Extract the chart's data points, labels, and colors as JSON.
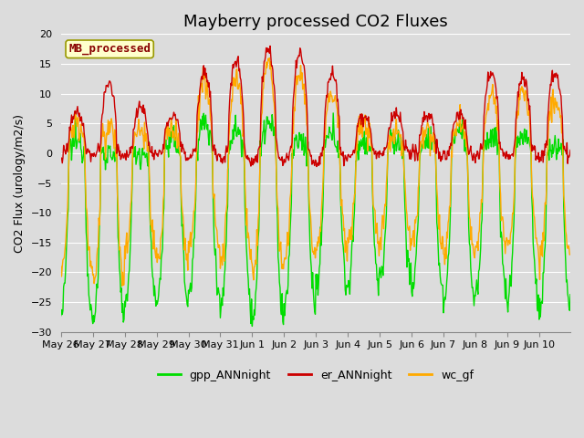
{
  "title": "Mayberry processed CO2 Fluxes",
  "ylabel": "CO2 Flux (urology/m2/s)",
  "ylim": [
    -30,
    20
  ],
  "yticks": [
    -30,
    -25,
    -20,
    -15,
    -10,
    -5,
    0,
    5,
    10,
    15,
    20
  ],
  "bg_color": "#dcdcdc",
  "plot_bg_color": "#dcdcdc",
  "fig_bg_color": "#dcdcdc",
  "gpp_color": "#00dd00",
  "er_color": "#cc0000",
  "wc_color": "#ffaa00",
  "legend_label_text": "MB_processed",
  "legend_text_color": "#880000",
  "legend_box_color": "#ffffcc",
  "legend_box_edge": "#999900",
  "line_width": 1.0,
  "n_days": 16,
  "points_per_day": 48,
  "title_fontsize": 13,
  "tick_fontsize": 8,
  "legend_fontsize": 9,
  "ylabel_fontsize": 9
}
